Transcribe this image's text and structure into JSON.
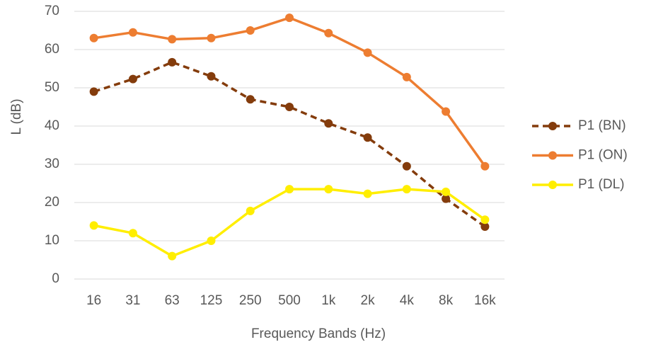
{
  "chart_data": {
    "type": "line",
    "x_label": "Frequency Bands (Hz)",
    "y_label": "L (dB)",
    "categories": [
      "16",
      "31",
      "63",
      "125",
      "250",
      "500",
      "1k",
      "2k",
      "4k",
      "8k",
      "16k"
    ],
    "series": [
      {
        "name": "P1 (BN)",
        "color": "#843c0c",
        "dashed": true,
        "values": [
          49,
          52.3,
          56.7,
          53,
          47,
          45,
          40.7,
          37,
          29.5,
          21,
          13.7
        ]
      },
      {
        "name": "P1 (ON)",
        "color": "#ed7d31",
        "dashed": false,
        "values": [
          63,
          64.5,
          62.7,
          63,
          65,
          68.3,
          64.3,
          59.2,
          52.8,
          43.8,
          29.5
        ]
      },
      {
        "name": "P1 (DL)",
        "color": "#ffee00",
        "dashed": false,
        "values": [
          14,
          12,
          6,
          10,
          17.8,
          23.5,
          23.5,
          22.3,
          23.5,
          22.8,
          15.5
        ]
      }
    ],
    "ylim": [
      0,
      70
    ],
    "yticks": [
      0,
      10,
      20,
      30,
      40,
      50,
      60,
      70
    ],
    "grid": true,
    "legend": "right"
  }
}
